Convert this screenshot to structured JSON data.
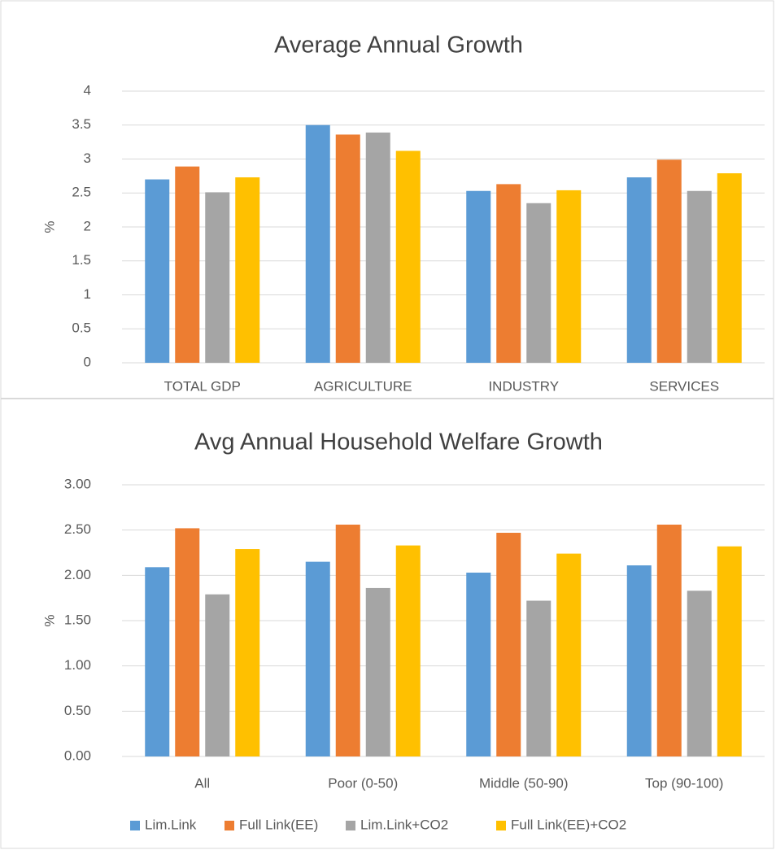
{
  "chart_data": [
    {
      "type": "bar",
      "title": "Average Annual Growth",
      "y_label": "%",
      "categories": [
        "TOTAL GDP",
        "AGRICULTURE",
        "INDUSTRY",
        "SERVICES"
      ],
      "series": [
        {
          "color": "#5b9bd5",
          "values": [
            2.7,
            3.5,
            2.53,
            2.73
          ]
        },
        {
          "color": "#ed7d31",
          "values": [
            2.89,
            3.36,
            2.63,
            2.99
          ]
        },
        {
          "color": "#a5a5a5",
          "values": [
            2.51,
            3.39,
            2.35,
            2.53
          ]
        },
        {
          "color": "#ffc000",
          "values": [
            2.73,
            3.12,
            2.54,
            2.79
          ]
        }
      ],
      "ylim": [
        0,
        4
      ],
      "yticks": [
        0,
        0.5,
        1,
        1.5,
        2,
        2.5,
        3,
        3.5,
        4
      ],
      "grid": true
    },
    {
      "type": "bar",
      "title": "Avg Annual Household Welfare Growth",
      "y_label": "%",
      "categories": [
        "All",
        "Poor (0-50)",
        "Middle (50-90)",
        "Top (90-100)"
      ],
      "series": [
        {
          "name": "Lim.Link",
          "color": "#5b9bd5",
          "values": [
            2.09,
            2.15,
            2.03,
            2.11
          ]
        },
        {
          "name": "Full Link(EE)",
          "color": "#ed7d31",
          "values": [
            2.52,
            2.56,
            2.47,
            2.56
          ]
        },
        {
          "name": "Lim.Link+CO2",
          "color": "#a5a5a5",
          "values": [
            1.79,
            1.86,
            1.72,
            1.83
          ]
        },
        {
          "name": "Full Link(EE)+CO2",
          "color": "#ffc000",
          "values": [
            2.29,
            2.33,
            2.24,
            2.32
          ]
        }
      ],
      "ylim": [
        0,
        3
      ],
      "yticks": [
        {
          "value": 0,
          "label": "0.00"
        },
        {
          "value": 0.5,
          "label": "0.50"
        },
        {
          "value": 1,
          "label": "1.00"
        },
        {
          "value": 1.5,
          "label": "1.50"
        },
        {
          "value": 2,
          "label": "2.00"
        },
        {
          "value": 2.5,
          "label": "2.50"
        },
        {
          "value": 3,
          "label": "3.00"
        }
      ],
      "grid": true,
      "legend": "bottom"
    }
  ]
}
